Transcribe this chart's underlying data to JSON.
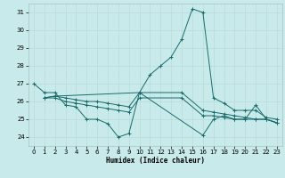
{
  "xlabel": "Humidex (Indice chaleur)",
  "background_color": "#c8eaea",
  "line_color": "#1a6b6b",
  "xlim": [
    -0.5,
    23.5
  ],
  "ylim": [
    23.5,
    31.5
  ],
  "yticks": [
    24,
    25,
    26,
    27,
    28,
    29,
    30,
    31
  ],
  "xticks": [
    0,
    1,
    2,
    3,
    4,
    5,
    6,
    7,
    8,
    9,
    10,
    11,
    12,
    13,
    14,
    15,
    16,
    17,
    18,
    19,
    20,
    21,
    22,
    23
  ],
  "line1_x": [
    0,
    1,
    2,
    3,
    4,
    5,
    6,
    7,
    8,
    9,
    10,
    11,
    12,
    13,
    14,
    15,
    16,
    17,
    18,
    19,
    20,
    21,
    22,
    23
  ],
  "line1_y": [
    27.0,
    26.5,
    26.5,
    25.8,
    25.7,
    25.0,
    25.0,
    24.75,
    24.0,
    24.2,
    26.5,
    27.5,
    28.0,
    28.5,
    29.5,
    31.2,
    31.0,
    26.2,
    25.9,
    25.5,
    25.5,
    25.5,
    25.1,
    25.0
  ],
  "line2_x": [
    1,
    2,
    3,
    4,
    5,
    6,
    7,
    8,
    9,
    10,
    14,
    16,
    17,
    18,
    19,
    20,
    21,
    22,
    23
  ],
  "line2_y": [
    26.2,
    26.3,
    26.2,
    26.1,
    26.0,
    26.0,
    25.9,
    25.8,
    25.7,
    26.5,
    26.5,
    25.5,
    25.4,
    25.3,
    25.2,
    25.1,
    25.0,
    25.0,
    24.8
  ],
  "line3_x": [
    1,
    2,
    3,
    4,
    5,
    6,
    7,
    8,
    9,
    10,
    14,
    16,
    17,
    18,
    19,
    20,
    21,
    22,
    23
  ],
  "line3_y": [
    26.2,
    26.2,
    26.0,
    25.9,
    25.8,
    25.7,
    25.6,
    25.5,
    25.4,
    26.2,
    26.2,
    25.2,
    25.2,
    25.1,
    25.0,
    25.0,
    25.0,
    25.0,
    24.8
  ],
  "line4_x": [
    1,
    2,
    10,
    16,
    17,
    18,
    19,
    20,
    21,
    22,
    23
  ],
  "line4_y": [
    26.2,
    26.3,
    26.5,
    24.1,
    25.0,
    25.2,
    25.0,
    25.0,
    25.8,
    25.0,
    24.8
  ]
}
